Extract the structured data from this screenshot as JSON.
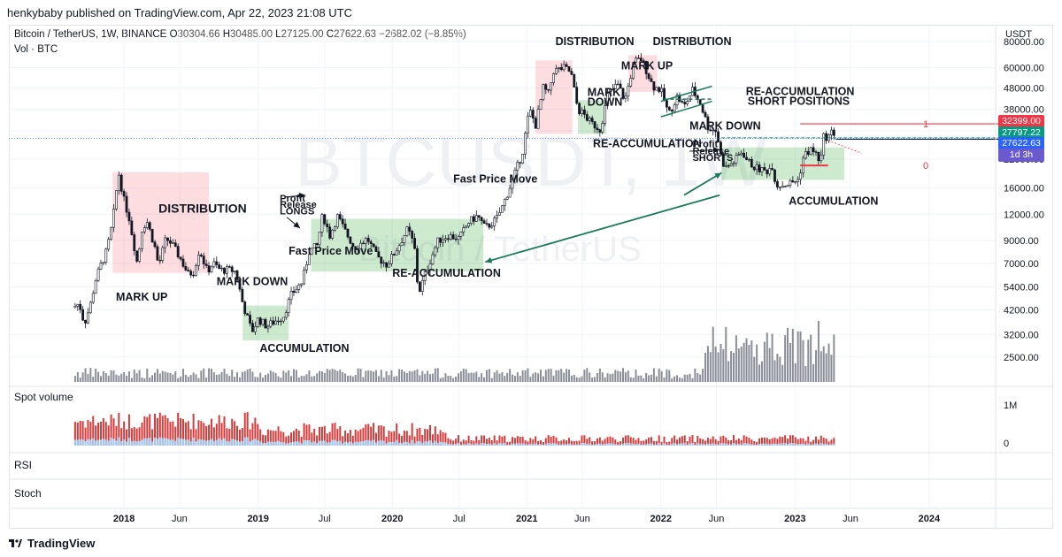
{
  "publisher_line": "henkybaby published on TradingView.com, Apr 22, 2023 21:08 UTC",
  "header": {
    "symbol": "Bitcoin / TetherUS, 1W, BINANCE",
    "o_label": "O",
    "o": "30304.66",
    "h_label": "H",
    "h": "30485.00",
    "l_label": "L",
    "l": "27125.00",
    "c_label": "C",
    "c": "27622.63",
    "change": "−2682.02 (−8.85%)",
    "vol": "Vol · BTC",
    "currency": "USDT"
  },
  "watermark": {
    "big": "BTCUSDT, 1W",
    "small": "Bitcoin / TetherUS"
  },
  "panes": {
    "spot_volume": "Spot volume",
    "rsi": "RSI",
    "stoch": "Stoch"
  },
  "price_tags": [
    {
      "label": "32399.00",
      "color": "#f23645"
    },
    {
      "label": "27797.22",
      "color": "#089981"
    },
    {
      "label": "27622.63",
      "color": "#2962ff"
    },
    {
      "label": "1d 3h",
      "color": "#6a5acd"
    }
  ],
  "footer": {
    "brand": "TradingView"
  },
  "chart_data": {
    "type": "candlestick",
    "y_scale": "log",
    "ylim": [
      1900,
      84000
    ],
    "y_ticks": [
      "80000.00",
      "60000.00",
      "48000.00",
      "38000.00",
      "30000.00",
      "22000.00",
      "16000.00",
      "12000.00",
      "9000.00",
      "7000.00",
      "5400.00",
      "4200.00",
      "3200.00",
      "2500.00"
    ],
    "x_ticks": [
      "2018",
      "Jun",
      "2019",
      "Jul",
      "2020",
      "Jul",
      "2021",
      "Jun",
      "2022",
      "Jun",
      "2023",
      "Jun",
      "2024"
    ],
    "x_domain": [
      "2017-08-14",
      "2024-06-01"
    ],
    "close_series": [
      [
        "2017-08-14",
        4300
      ],
      [
        "2017-09-01",
        4500
      ],
      [
        "2017-09-15",
        3600
      ],
      [
        "2017-10-01",
        4400
      ],
      [
        "2017-10-15",
        5800
      ],
      [
        "2017-11-01",
        7000
      ],
      [
        "2017-11-15",
        8000
      ],
      [
        "2017-12-01",
        11000
      ],
      [
        "2017-12-17",
        19000
      ],
      [
        "2018-01-01",
        14000
      ],
      [
        "2018-01-15",
        11500
      ],
      [
        "2018-02-06",
        7000
      ],
      [
        "2018-02-20",
        10500
      ],
      [
        "2018-03-05",
        11000
      ],
      [
        "2018-03-25",
        8500
      ],
      [
        "2018-04-05",
        6800
      ],
      [
        "2018-04-25",
        9200
      ],
      [
        "2018-05-10",
        8700
      ],
      [
        "2018-06-01",
        7500
      ],
      [
        "2018-06-25",
        6200
      ],
      [
        "2018-07-10",
        6400
      ],
      [
        "2018-07-25",
        8200
      ],
      [
        "2018-08-15",
        6400
      ],
      [
        "2018-09-01",
        7000
      ],
      [
        "2018-09-20",
        6500
      ],
      [
        "2018-10-15",
        6500
      ],
      [
        "2018-11-01",
        6400
      ],
      [
        "2018-11-20",
        4500
      ],
      [
        "2018-12-15",
        3300
      ],
      [
        "2019-01-01",
        3800
      ],
      [
        "2019-01-25",
        3500
      ],
      [
        "2019-02-15",
        3700
      ],
      [
        "2019-03-10",
        3900
      ],
      [
        "2019-04-02",
        5000
      ],
      [
        "2019-05-01",
        5700
      ],
      [
        "2019-05-20",
        8000
      ],
      [
        "2019-06-10",
        8500
      ],
      [
        "2019-06-26",
        12000
      ],
      [
        "2019-07-15",
        9500
      ],
      [
        "2019-08-05",
        11700
      ],
      [
        "2019-08-25",
        10000
      ],
      [
        "2019-09-20",
        8300
      ],
      [
        "2019-10-25",
        9200
      ],
      [
        "2019-11-20",
        7500
      ],
      [
        "2019-12-17",
        6900
      ],
      [
        "2020-01-10",
        8000
      ],
      [
        "2020-02-12",
        10200
      ],
      [
        "2020-03-01",
        8500
      ],
      [
        "2020-03-12",
        5000
      ],
      [
        "2020-04-10",
        7000
      ],
      [
        "2020-05-05",
        9000
      ],
      [
        "2020-06-01",
        9500
      ],
      [
        "2020-07-01",
        9200
      ],
      [
        "2020-07-27",
        11000
      ],
      [
        "2020-08-20",
        11800
      ],
      [
        "2020-09-10",
        10300
      ],
      [
        "2020-10-10",
        11300
      ],
      [
        "2020-10-26",
        13000
      ],
      [
        "2020-11-15",
        16000
      ],
      [
        "2020-12-01",
        19000
      ],
      [
        "2020-12-20",
        23500
      ],
      [
        "2021-01-08",
        38000
      ],
      [
        "2021-01-25",
        32000
      ],
      [
        "2021-02-15",
        48000
      ],
      [
        "2021-03-01",
        45000
      ],
      [
        "2021-03-15",
        58000
      ],
      [
        "2021-04-14",
        60000
      ],
      [
        "2021-05-01",
        57000
      ],
      [
        "2021-05-20",
        38000
      ],
      [
        "2021-06-05",
        36000
      ],
      [
        "2021-06-22",
        33000
      ],
      [
        "2021-07-20",
        30500
      ],
      [
        "2021-08-10",
        45000
      ],
      [
        "2021-09-05",
        50000
      ],
      [
        "2021-09-25",
        42000
      ],
      [
        "2021-10-20",
        64000
      ],
      [
        "2021-11-09",
        66000
      ],
      [
        "2021-11-25",
        57000
      ],
      [
        "2021-12-10",
        49000
      ],
      [
        "2022-01-01",
        47000
      ],
      [
        "2022-01-22",
        36000
      ],
      [
        "2022-02-15",
        44000
      ],
      [
        "2022-03-05",
        39000
      ],
      [
        "2022-03-28",
        47000
      ],
      [
        "2022-04-20",
        40000
      ],
      [
        "2022-05-10",
        31000
      ],
      [
        "2022-06-01",
        30000
      ],
      [
        "2022-06-15",
        22000
      ],
      [
        "2022-06-25",
        20000
      ],
      [
        "2022-07-15",
        21000
      ],
      [
        "2022-08-10",
        24000
      ],
      [
        "2022-08-25",
        21500
      ],
      [
        "2022-09-15",
        20000
      ],
      [
        "2022-10-15",
        19200
      ],
      [
        "2022-11-01",
        20500
      ],
      [
        "2022-11-10",
        16500
      ],
      [
        "2022-11-25",
        16500
      ],
      [
        "2022-12-15",
        16800
      ],
      [
        "2023-01-10",
        17500
      ],
      [
        "2023-01-25",
        23000
      ],
      [
        "2023-02-15",
        24500
      ],
      [
        "2023-03-05",
        22500
      ],
      [
        "2023-03-10",
        20500
      ],
      [
        "2023-03-20",
        28000
      ],
      [
        "2023-04-05",
        28300
      ],
      [
        "2023-04-14",
        30300
      ],
      [
        "2023-04-22",
        27622
      ]
    ],
    "zones": [
      {
        "label": "DISTRIBUTION",
        "kind": "distribution",
        "from": "2017-12-01",
        "to": "2018-08-20",
        "low": 6300,
        "high": 19000
      },
      {
        "label": "ACCUMULATION",
        "kind": "accumulation",
        "from": "2018-11-20",
        "to": "2019-03-25",
        "low": 3000,
        "high": 4400
      },
      {
        "label": "RE-ACCUMULATION",
        "kind": "accumulation",
        "from": "2019-05-25",
        "to": "2020-09-05",
        "low": 6400,
        "high": 11400
      },
      {
        "label": "DISTRIBUTION",
        "kind": "distribution",
        "from": "2021-01-25",
        "to": "2021-05-05",
        "low": 29000,
        "high": 65000
      },
      {
        "label": "RE-ACCUMULATION",
        "kind": "accumulation",
        "from": "2021-05-20",
        "to": "2021-08-05",
        "low": 29000,
        "high": 42000
      },
      {
        "label": "DISTRIBUTION",
        "kind": "distribution",
        "from": "2021-10-05",
        "to": "2021-12-22",
        "low": 46000,
        "high": 69000
      },
      {
        "label": "ACCUMULATION",
        "kind": "accumulation",
        "from": "2022-06-15",
        "to": "2023-05-15",
        "low": 17500,
        "high": 25000
      }
    ],
    "annotations": [
      {
        "text": "MARK UP",
        "date": "2017-12-10",
        "price": 4650
      },
      {
        "text": "DISTRIBUTION",
        "date": "2018-04-05",
        "price": 12200
      },
      {
        "text": "MARK DOWN",
        "date": "2018-09-10",
        "price": 5500
      },
      {
        "text": "ACCUMULATION",
        "date": "2019-01-05",
        "price": 2650
      },
      {
        "text": "Fast Price Move",
        "date": "2019-03-25",
        "price": 7700
      },
      {
        "text": "Profit",
        "date": "2019-03-01",
        "price": 13800
      },
      {
        "text": "Release",
        "date": "2019-03-01",
        "price": 12850
      },
      {
        "text": "LONGS",
        "date": "2019-03-01",
        "price": 11950
      },
      {
        "text": "RE-ACCUMULATION",
        "date": "2020-01-01",
        "price": 6050
      },
      {
        "text": "Fast Price Move",
        "date": "2020-06-15",
        "price": 17000
      },
      {
        "text": "DISTRIBUTION",
        "date": "2021-03-20",
        "price": 77000
      },
      {
        "text": "MARK",
        "date": "2021-06-15",
        "price": 44000
      },
      {
        "text": "DOWN",
        "date": "2021-06-15",
        "price": 39500
      },
      {
        "text": "RE-ACCUMULATION",
        "date": "2021-06-30",
        "price": 25000
      },
      {
        "text": "MARK UP",
        "date": "2021-09-15",
        "price": 59000
      },
      {
        "text": "DISTRIBUTION",
        "date": "2021-12-10",
        "price": 77000
      },
      {
        "text": "RE-ACCUMULATION",
        "date": "2022-08-20",
        "price": 44500
      },
      {
        "text": "SHORT POSITIONS",
        "date": "2022-08-25",
        "price": 40000
      },
      {
        "text": "MARK DOWN",
        "date": "2022-03-20",
        "price": 30500
      },
      {
        "text": "Profit",
        "date": "2022-03-28",
        "price": 25000
      },
      {
        "text": "Release",
        "date": "2022-03-28",
        "price": 23200
      },
      {
        "text": "SHORTS",
        "date": "2022-03-28",
        "price": 21600
      },
      {
        "text": "ACCUMULATION",
        "date": "2022-12-15",
        "price": 13300
      }
    ],
    "levels": [
      {
        "label": "1",
        "price": 32399,
        "color": "#f23645"
      },
      {
        "label": "0",
        "price": 20500,
        "color": "#f23645"
      },
      {
        "price": 27797.22,
        "color": "#089981"
      },
      {
        "price": 27622.63,
        "color": "#2962ff"
      }
    ],
    "volume_pane_ticks": [
      "1M",
      "0"
    ],
    "spot_volume_level": 0.25
  }
}
